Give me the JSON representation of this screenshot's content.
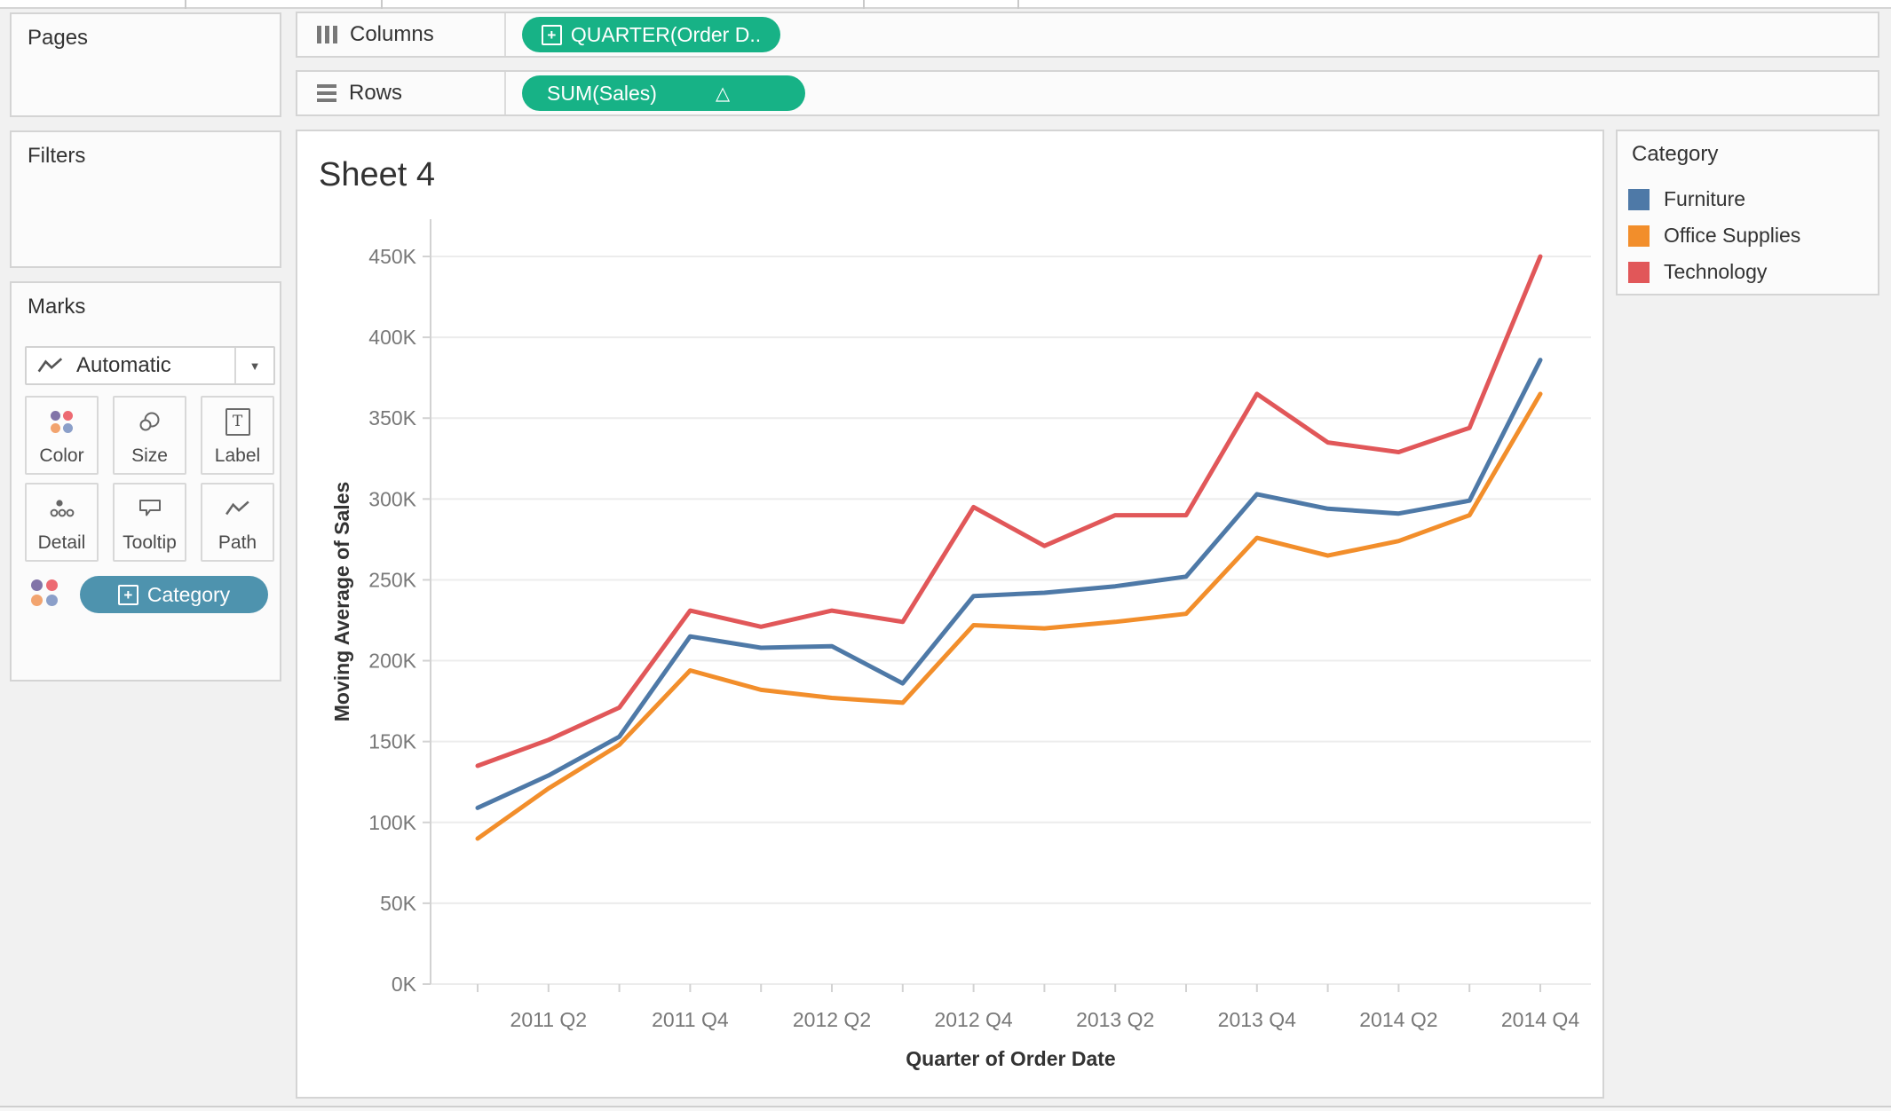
{
  "shelves": {
    "pages": {
      "label": "Pages"
    },
    "filters": {
      "label": "Filters"
    },
    "columns": {
      "label": "Columns",
      "pill": "QUARTER(Order D.."
    },
    "rows": {
      "label": "Rows",
      "pill": "SUM(Sales)"
    },
    "marks": {
      "label": "Marks",
      "mark_type": "Automatic",
      "buttons": [
        {
          "label": "Color"
        },
        {
          "label": "Size"
        },
        {
          "label": "Label"
        },
        {
          "label": "Detail"
        },
        {
          "label": "Tooltip"
        },
        {
          "label": "Path"
        }
      ],
      "color_pill": "Category"
    }
  },
  "sheet": {
    "title": "Sheet 4"
  },
  "legend": {
    "title": "Category",
    "items": [
      {
        "label": "Furniture",
        "color": "#4e79a7"
      },
      {
        "label": "Office Supplies",
        "color": "#f28e2b"
      },
      {
        "label": "Technology",
        "color": "#e15759"
      }
    ]
  },
  "chart_data": {
    "type": "line",
    "title": "Sheet 4",
    "xlabel": "Quarter of Order Date",
    "ylabel": "Moving Average of Sales",
    "x": [
      "2011 Q1",
      "2011 Q2",
      "2011 Q3",
      "2011 Q4",
      "2012 Q1",
      "2012 Q2",
      "2012 Q3",
      "2012 Q4",
      "2013 Q1",
      "2013 Q2",
      "2013 Q3",
      "2013 Q4",
      "2014 Q1",
      "2014 Q2",
      "2014 Q3",
      "2014 Q4"
    ],
    "x_tick_labels": [
      "2011 Q2",
      "2011 Q4",
      "2012 Q2",
      "2012 Q4",
      "2013 Q2",
      "2013 Q4",
      "2014 Q2",
      "2014 Q4"
    ],
    "y_tick_labels": [
      "0K",
      "50K",
      "100K",
      "150K",
      "200K",
      "250K",
      "300K",
      "350K",
      "400K",
      "450K"
    ],
    "ylim": [
      0,
      473000
    ],
    "y_tick_step": 50000,
    "grid": "horizontal",
    "legend_position": "right",
    "series": [
      {
        "name": "Furniture",
        "color": "#4e79a7",
        "values": [
          109000,
          129000,
          153000,
          215000,
          208000,
          209000,
          186000,
          240000,
          242000,
          246000,
          252000,
          303000,
          294000,
          291000,
          299000,
          386000
        ]
      },
      {
        "name": "Office Supplies",
        "color": "#f28e2b",
        "values": [
          90000,
          121000,
          148000,
          194000,
          182000,
          177000,
          174000,
          222000,
          220000,
          224000,
          229000,
          276000,
          265000,
          274000,
          290000,
          365000
        ]
      },
      {
        "name": "Technology",
        "color": "#e15759",
        "values": [
          135000,
          151000,
          171000,
          231000,
          221000,
          231000,
          224000,
          295000,
          271000,
          290000,
          290000,
          365000,
          335000,
          329000,
          344000,
          450000
        ]
      }
    ]
  }
}
